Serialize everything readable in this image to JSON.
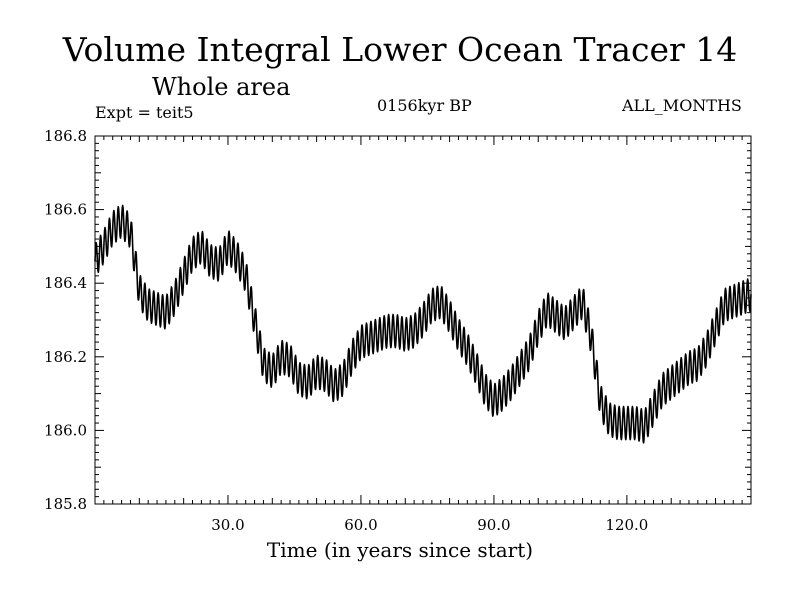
{
  "chart_data": {
    "type": "line",
    "title": "Volume Integral Lower Ocean Tracer 14",
    "subtitle": "Whole area",
    "annotations": {
      "experiment": "Expt = teit5",
      "period": "0156kyr BP",
      "months": "ALL_MONTHS"
    },
    "xlabel": "Time (in years since start)",
    "ylabel": "",
    "xlim": [
      0,
      148
    ],
    "ylim": [
      185.8,
      186.8
    ],
    "xticks": [
      30,
      60,
      90,
      120
    ],
    "xtick_labels": [
      "30.0",
      "60.0",
      "90.0",
      "120.0"
    ],
    "yticks": [
      185.8,
      186.0,
      186.2,
      186.4,
      186.6,
      186.8
    ],
    "ytick_labels": [
      "185.8",
      "186.0",
      "186.2",
      "186.4",
      "186.6",
      "186.8"
    ],
    "seasonal_amplitude": 0.045,
    "series": [
      {
        "name": "Lower Ocean Tracer 14",
        "x": [
          0,
          2,
          4,
          6,
          8,
          10,
          12,
          14,
          16,
          18,
          20,
          22,
          24,
          26,
          28,
          30,
          32,
          34,
          36,
          38,
          40,
          42,
          44,
          46,
          48,
          50,
          52,
          54,
          56,
          58,
          60,
          62,
          64,
          66,
          68,
          70,
          72,
          74,
          76,
          78,
          80,
          82,
          84,
          86,
          88,
          90,
          92,
          94,
          96,
          98,
          100,
          102,
          104,
          106,
          108,
          110,
          112,
          114,
          116,
          118,
          120,
          122,
          124,
          126,
          128,
          130,
          132,
          134,
          136,
          138,
          140,
          142,
          144,
          146,
          148
        ],
        "values": [
          186.46,
          186.5,
          186.55,
          186.57,
          186.54,
          186.38,
          186.34,
          186.33,
          186.32,
          186.36,
          186.42,
          186.48,
          186.5,
          186.46,
          186.45,
          186.5,
          186.47,
          186.42,
          186.3,
          186.18,
          186.16,
          186.2,
          186.19,
          186.14,
          186.13,
          186.16,
          186.15,
          186.12,
          186.14,
          186.2,
          186.24,
          186.25,
          186.26,
          186.27,
          186.27,
          186.26,
          186.27,
          186.3,
          186.34,
          186.35,
          186.31,
          186.26,
          186.22,
          186.17,
          186.11,
          186.08,
          186.1,
          186.13,
          186.17,
          186.21,
          186.28,
          186.33,
          186.31,
          186.29,
          186.32,
          186.35,
          186.25,
          186.08,
          186.03,
          186.02,
          186.02,
          186.02,
          186.01,
          186.06,
          186.11,
          186.13,
          186.15,
          186.17,
          186.18,
          186.22,
          186.28,
          186.34,
          186.35,
          186.36,
          186.37
        ]
      }
    ]
  }
}
